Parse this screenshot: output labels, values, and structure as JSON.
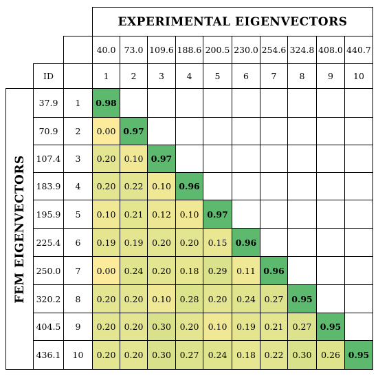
{
  "chart_data": {
    "type": "heatmap",
    "title_top": "EXPERIMENTAL EIGENVECTORS",
    "title_left": "FEM EIGENVECTORS",
    "id_label": "ID",
    "experimental_frequencies": [
      "40.0",
      "73.0",
      "109.6",
      "188.6",
      "200.5",
      "230.0",
      "254.6",
      "324.8",
      "408.0",
      "440.7"
    ],
    "experimental_ids": [
      "1",
      "2",
      "3",
      "4",
      "5",
      "6",
      "7",
      "8",
      "9",
      "10"
    ],
    "fem_frequencies": [
      "37.9",
      "70.9",
      "107.4",
      "183.9",
      "195.9",
      "225.4",
      "250.0",
      "320.2",
      "404.5",
      "436.1"
    ],
    "fem_ids": [
      "1",
      "2",
      "3",
      "4",
      "5",
      "6",
      "7",
      "8",
      "9",
      "10"
    ],
    "rows": [
      [
        "0.98"
      ],
      [
        "0.00",
        "0.97"
      ],
      [
        "0.20",
        "0.10",
        "0.97"
      ],
      [
        "0.20",
        "0.22",
        "0.10",
        "0.96"
      ],
      [
        "0.10",
        "0.21",
        "0.12",
        "0.10",
        "0.97"
      ],
      [
        "0.19",
        "0.19",
        "0.20",
        "0.20",
        "0.15",
        "0.96"
      ],
      [
        "0.00",
        "0.24",
        "0.20",
        "0.18",
        "0.29",
        "0.11",
        "0.96"
      ],
      [
        "0.20",
        "0.20",
        "0.10",
        "0.28",
        "0.20",
        "0.24",
        "0.27",
        "0.95"
      ],
      [
        "0.20",
        "0.20",
        "0.30",
        "0.20",
        "0.10",
        "0.19",
        "0.21",
        "0.27",
        "0.95"
      ],
      [
        "0.20",
        "0.20",
        "0.30",
        "0.27",
        "0.24",
        "0.18",
        "0.22",
        "0.30",
        "0.26",
        "0.95"
      ]
    ],
    "colors": {
      "low": "#fbeb9b",
      "mid": "#d9e28a",
      "high": "#5cb96e"
    }
  }
}
